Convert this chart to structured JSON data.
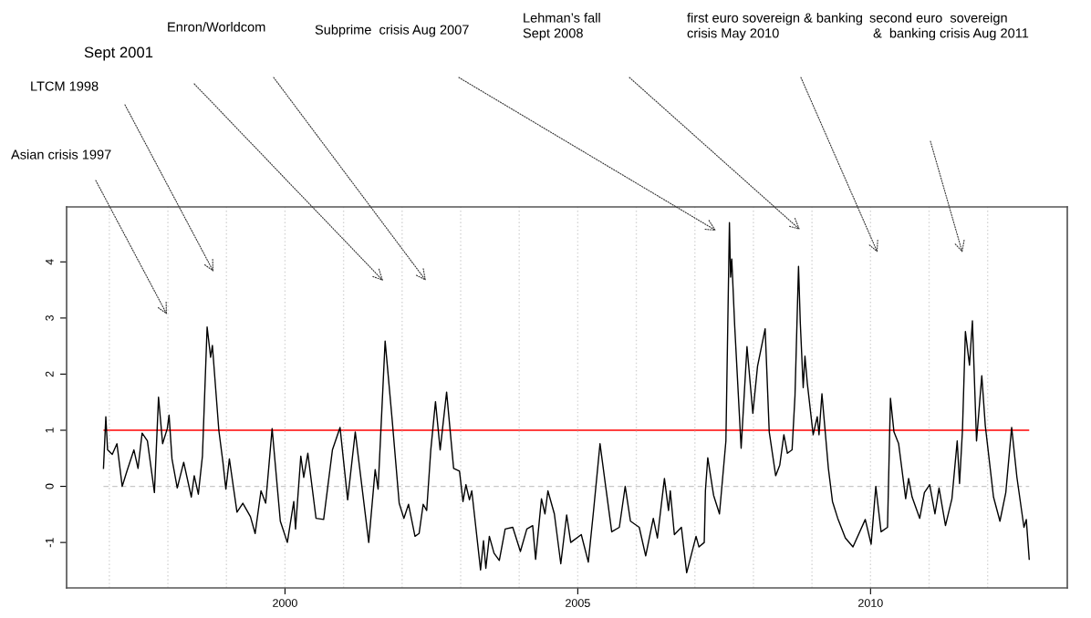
{
  "chart_data": {
    "type": "line",
    "x": [
      1996.9,
      1996.94,
      1996.97,
      1997.05,
      1997.13,
      1997.22,
      1997.3,
      1997.42,
      1997.49,
      1997.56,
      1997.65,
      1997.77,
      1997.84,
      1997.91,
      1997.99,
      1998.02,
      1998.07,
      1998.16,
      1998.27,
      1998.4,
      1998.45,
      1998.52,
      1998.59,
      1998.67,
      1998.73,
      1998.76,
      1998.87,
      1998.94,
      1998.99,
      1999.05,
      1999.18,
      1999.28,
      1999.41,
      1999.49,
      1999.59,
      1999.67,
      1999.78,
      1999.92,
      2000.04,
      2000.15,
      2000.18,
      2000.27,
      2000.32,
      2000.39,
      2000.53,
      2000.66,
      2000.81,
      2000.94,
      2001.07,
      2001.2,
      2001.43,
      2001.54,
      2001.59,
      2001.71,
      2001.83,
      2001.95,
      2002.03,
      2002.11,
      2002.22,
      2002.29,
      2002.36,
      2002.42,
      2002.49,
      2002.57,
      2002.65,
      2002.76,
      2002.88,
      2002.98,
      2003.04,
      2003.09,
      2003.15,
      2003.19,
      2003.34,
      2003.39,
      2003.43,
      2003.49,
      2003.57,
      2003.66,
      2003.76,
      2003.89,
      2004.02,
      2004.13,
      2004.23,
      2004.28,
      2004.38,
      2004.44,
      2004.49,
      2004.6,
      2004.71,
      2004.81,
      2004.88,
      2005.06,
      2005.18,
      2005.27,
      2005.38,
      2005.48,
      2005.58,
      2005.71,
      2005.81,
      2005.9,
      2006.05,
      2006.16,
      2006.29,
      2006.36,
      2006.48,
      2006.55,
      2006.58,
      2006.65,
      2006.77,
      2006.86,
      2007.02,
      2007.07,
      2007.16,
      2007.18,
      2007.22,
      2007.32,
      2007.42,
      2007.53,
      2007.59,
      2007.61,
      2007.63,
      2007.68,
      2007.79,
      2007.89,
      2007.99,
      2008.07,
      2008.2,
      2008.27,
      2008.38,
      2008.45,
      2008.52,
      2008.58,
      2008.66,
      2008.71,
      2008.77,
      2008.8,
      2008.85,
      2008.88,
      2008.92,
      2009.02,
      2009.09,
      2009.12,
      2009.17,
      2009.28,
      2009.35,
      2009.44,
      2009.57,
      2009.7,
      2009.91,
      2010.01,
      2010.09,
      2010.18,
      2010.29,
      2010.34,
      2010.4,
      2010.48,
      2010.6,
      2010.65,
      2010.71,
      2010.84,
      2010.92,
      2011.01,
      2011.1,
      2011.17,
      2011.28,
      2011.39,
      2011.48,
      2011.52,
      2011.57,
      2011.62,
      2011.69,
      2011.74,
      2011.81,
      2011.9,
      2011.96,
      2012.1,
      2012.21,
      2012.31,
      2012.41,
      2012.5,
      2012.62,
      2012.66,
      2012.71
    ],
    "series": [
      {
        "color": "#000000",
        "values": [
          0.32,
          1.24,
          0.65,
          0.57,
          0.76,
          0.0,
          0.27,
          0.65,
          0.32,
          0.95,
          0.81,
          -0.11,
          1.59,
          0.76,
          1.03,
          1.27,
          0.49,
          -0.03,
          0.43,
          -0.19,
          0.19,
          -0.14,
          0.54,
          2.84,
          2.3,
          2.51,
          1.0,
          0.43,
          -0.05,
          0.49,
          -0.46,
          -0.3,
          -0.54,
          -0.84,
          -0.08,
          -0.3,
          1.03,
          -0.62,
          -1.0,
          -0.27,
          -0.76,
          0.54,
          0.16,
          0.59,
          -0.57,
          -0.59,
          0.65,
          1.05,
          -0.24,
          0.97,
          -1.0,
          0.3,
          -0.05,
          2.59,
          1.19,
          -0.3,
          -0.57,
          -0.32,
          -0.89,
          -0.84,
          -0.32,
          -0.43,
          0.65,
          1.51,
          0.65,
          1.68,
          0.32,
          0.27,
          -0.27,
          0.03,
          -0.24,
          -0.08,
          -1.49,
          -0.97,
          -1.46,
          -0.89,
          -1.19,
          -1.32,
          -0.76,
          -0.73,
          -1.16,
          -0.76,
          -0.7,
          -1.3,
          -0.22,
          -0.49,
          -0.08,
          -0.49,
          -1.38,
          -0.51,
          -1.0,
          -0.86,
          -1.35,
          -0.43,
          0.76,
          -0.03,
          -0.81,
          -0.73,
          0.0,
          -0.62,
          -0.73,
          -1.24,
          -0.57,
          -0.92,
          0.14,
          -0.43,
          -0.08,
          -0.86,
          -0.73,
          -1.54,
          -0.89,
          -1.08,
          -1.0,
          -0.08,
          0.51,
          -0.16,
          -0.49,
          0.81,
          4.7,
          3.73,
          4.05,
          2.86,
          0.68,
          2.49,
          1.3,
          2.14,
          2.81,
          0.97,
          0.19,
          0.38,
          0.92,
          0.59,
          0.65,
          1.62,
          3.92,
          2.92,
          1.76,
          2.32,
          1.84,
          0.92,
          1.24,
          0.92,
          1.65,
          0.32,
          -0.27,
          -0.57,
          -0.92,
          -1.08,
          -0.59,
          -1.03,
          0.0,
          -0.81,
          -0.73,
          1.57,
          0.97,
          0.76,
          -0.22,
          0.14,
          -0.19,
          -0.57,
          -0.11,
          0.03,
          -0.49,
          -0.03,
          -0.7,
          -0.22,
          0.81,
          0.05,
          1.0,
          2.76,
          2.16,
          2.95,
          0.81,
          1.97,
          1.08,
          -0.19,
          -0.62,
          -0.11,
          1.05,
          0.16,
          -0.73,
          -0.59,
          -1.3
        ]
      }
    ],
    "xlim": [
      1996.27,
      2013.36
    ],
    "xticks": [
      2000,
      2005,
      2010
    ],
    "ylim": [
      -1.81,
      4.98
    ],
    "yticks": [
      {
        "value": -1,
        "label": "-1"
      },
      0,
      1,
      2,
      3,
      4
    ],
    "ref_lines": [
      {
        "axis": "y",
        "value": 1,
        "color": "#ff0000",
        "line_style": "solid"
      },
      {
        "axis": "y",
        "value": 0,
        "color": "#c8c8c8",
        "line_style": "dashed"
      },
      {
        "axis": "x",
        "value": 1997,
        "color": "#d3d3d3",
        "line_style": "dotted"
      },
      {
        "axis": "x",
        "value": 1998,
        "color": "#d3d3d3",
        "line_style": "dotted"
      },
      {
        "axis": "x",
        "value": 1999,
        "color": "#d3d3d3",
        "line_style": "dotted"
      },
      {
        "axis": "x",
        "value": 2000,
        "color": "#d3d3d3",
        "line_style": "dotted"
      },
      {
        "axis": "x",
        "value": 2001,
        "color": "#d3d3d3",
        "line_style": "dotted"
      },
      {
        "axis": "x",
        "value": 2002,
        "color": "#d3d3d3",
        "line_style": "dotted"
      },
      {
        "axis": "x",
        "value": 2003,
        "color": "#d3d3d3",
        "line_style": "dotted"
      },
      {
        "axis": "x",
        "value": 2004,
        "color": "#d3d3d3",
        "line_style": "dotted"
      },
      {
        "axis": "x",
        "value": 2005,
        "color": "#d3d3d3",
        "line_style": "dotted"
      },
      {
        "axis": "x",
        "value": 2006,
        "color": "#d3d3d3",
        "line_style": "dotted"
      },
      {
        "axis": "x",
        "value": 2007,
        "color": "#d3d3d3",
        "line_style": "dotted"
      },
      {
        "axis": "x",
        "value": 2008,
        "color": "#d3d3d3",
        "line_style": "dotted"
      },
      {
        "axis": "x",
        "value": 2009,
        "color": "#d3d3d3",
        "line_style": "dotted"
      },
      {
        "axis": "x",
        "value": 2010,
        "color": "#d3d3d3",
        "line_style": "dotted"
      },
      {
        "axis": "x",
        "value": 2011,
        "color": "#d3d3d3",
        "line_style": "dotted"
      },
      {
        "axis": "x",
        "value": 2012,
        "color": "#d3d3d3",
        "line_style": "dotted"
      }
    ],
    "annotations": [
      "Asian crisis 1997",
      "LTCM 1998",
      "Sept 2001",
      "Enron/Worldcom",
      "Subprime  crisis Aug 2007",
      "Lehman’s fall\nSept 2008",
      "first euro sovereign & banking\ncrisis May 2010",
      "second euro  sovereign\n &  banking crisis Aug 2011"
    ],
    "grid": false,
    "legend": false,
    "marker": "none",
    "line_style": "solid"
  }
}
